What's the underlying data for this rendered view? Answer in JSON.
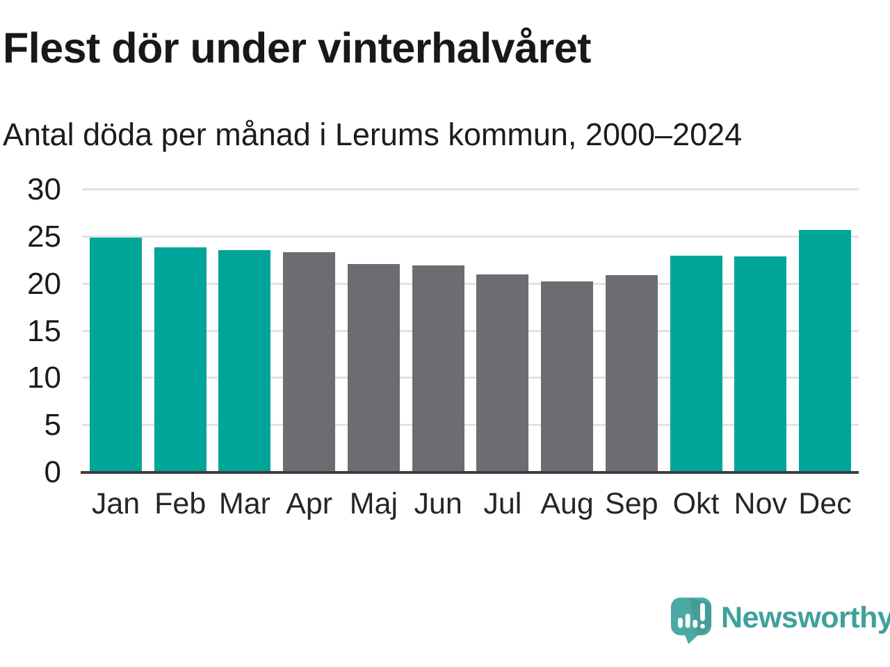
{
  "header": {
    "title": "Flest dör under vinterhalvåret",
    "subtitle": "Antal döda per månad i Lerums kommun, 2000–2024"
  },
  "chart_data": {
    "type": "bar",
    "title": "Flest dör under vinterhalvåret",
    "subtitle": "Antal döda per månad i Lerums kommun, 2000–2024",
    "categories": [
      "Jan",
      "Feb",
      "Mar",
      "Apr",
      "Maj",
      "Jun",
      "Jul",
      "Aug",
      "Sep",
      "Okt",
      "Nov",
      "Dec"
    ],
    "values": [
      24.9,
      23.9,
      23.6,
      23.4,
      22.1,
      22.0,
      21.0,
      20.3,
      20.9,
      23.0,
      22.9,
      25.7
    ],
    "bar_color_roles": [
      "winter",
      "winter",
      "winter",
      "summer",
      "summer",
      "summer",
      "summer",
      "summer",
      "summer",
      "winter",
      "winter",
      "winter"
    ],
    "colors": {
      "winter": "#00a59a",
      "summer": "#6e6b73"
    },
    "ylim": [
      0,
      30
    ],
    "yticks": [
      0,
      5,
      10,
      15,
      20,
      25,
      30
    ],
    "grid": true,
    "legend": "none",
    "xlabel": "",
    "ylabel": ""
  },
  "footer": {
    "brand": "Newsworthy",
    "logo_icon": "newsworthy-bubble-chart-icon",
    "brand_color": "#3fa19b",
    "icon_color": "#4ba9a4"
  }
}
